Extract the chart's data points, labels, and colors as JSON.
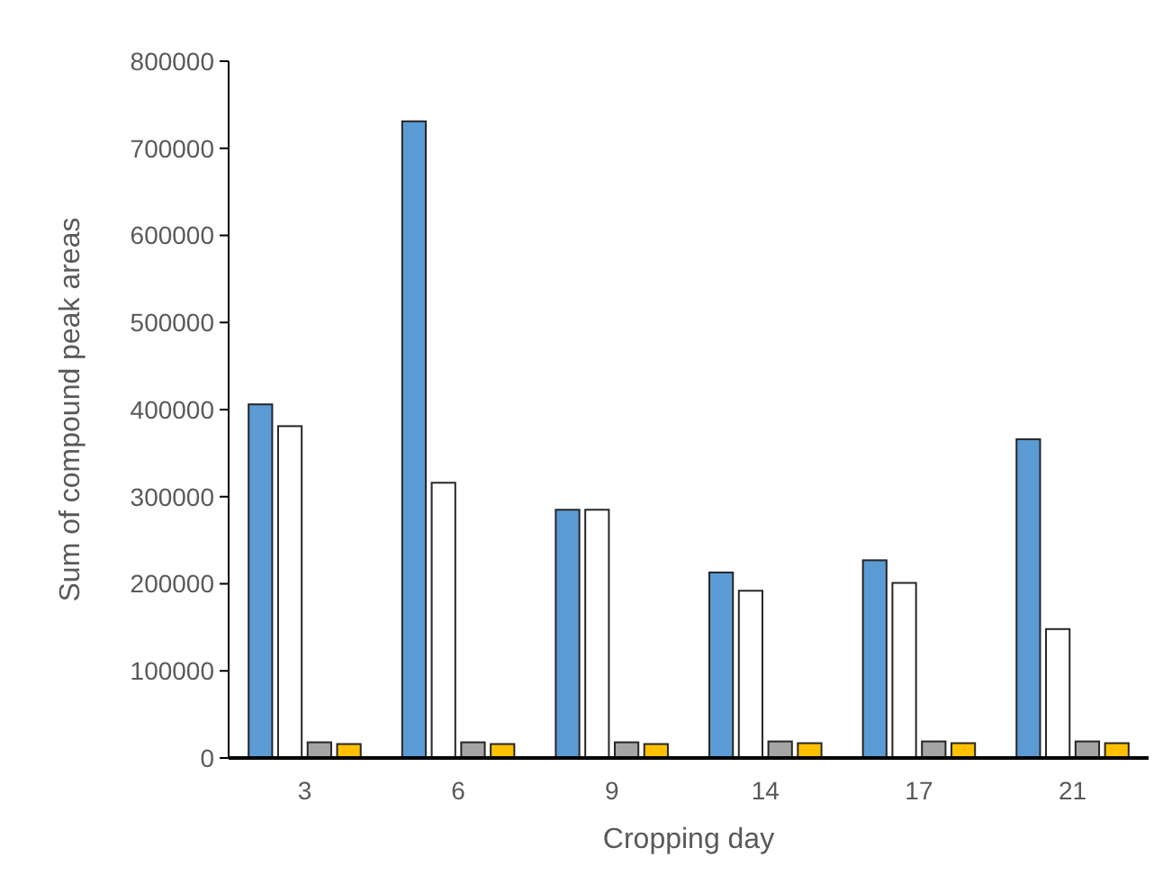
{
  "chart_data": {
    "type": "bar",
    "xlabel": "Cropping day",
    "ylabel": "Sum of compound peak areas",
    "categories": [
      "3",
      "6",
      "9",
      "14",
      "17",
      "21"
    ],
    "series": [
      {
        "color": "#5b9bd5",
        "values": [
          406000,
          731000,
          285000,
          213000,
          227000,
          366000
        ]
      },
      {
        "color": "#ffffff",
        "values": [
          381000,
          316000,
          285000,
          192000,
          201000,
          148000
        ]
      },
      {
        "color": "#a5a5a5",
        "values": [
          18000,
          18000,
          18000,
          19000,
          19000,
          19000
        ]
      },
      {
        "color": "#ffc000",
        "values": [
          16000,
          16000,
          16000,
          17000,
          17000,
          17000
        ]
      }
    ],
    "ylim": [
      0,
      800000
    ],
    "yticks": [
      0,
      100000,
      200000,
      300000,
      400000,
      500000,
      600000,
      700000,
      800000
    ],
    "grid": false
  }
}
